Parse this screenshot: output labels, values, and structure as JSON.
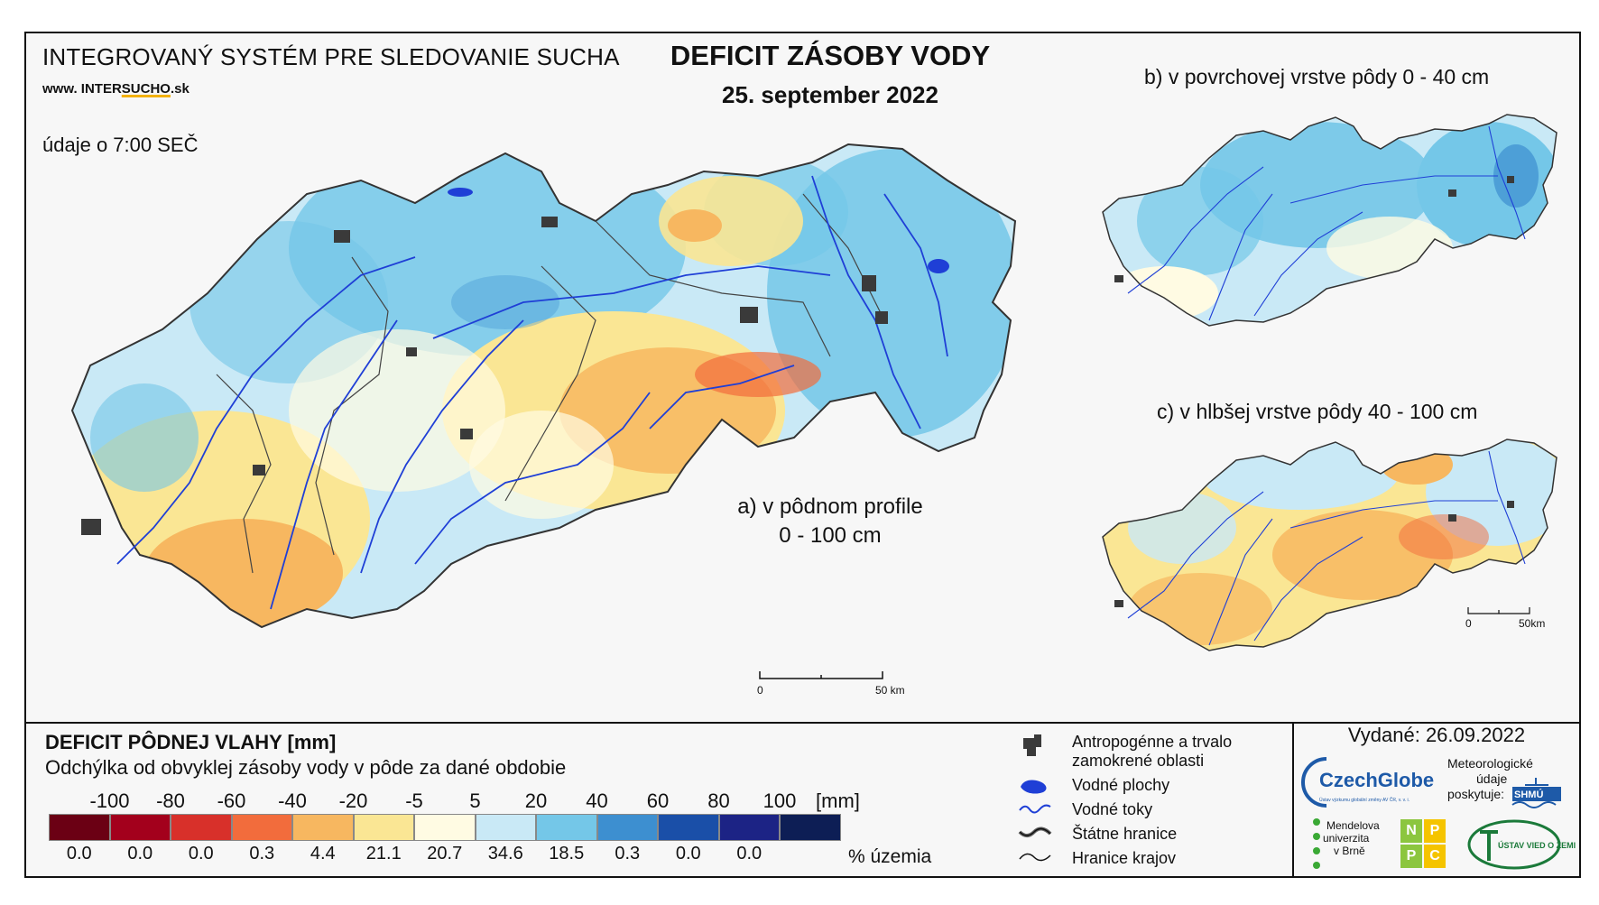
{
  "header": {
    "system_title": "INTEGROVANÝ SYSTÉM PRE SLEDOVANIE SUCHA",
    "website_prefix": "www. INTER",
    "website_highlight": "SUCHO",
    "website_suffix": ".sk",
    "data_time": "údaje o 7:00 SEČ",
    "title": "DEFICIT ZÁSOBY VODY",
    "date": "25. september 2022"
  },
  "maps": {
    "a_line1": "a) v pôdnom profile",
    "a_line2": "0 - 100 cm",
    "b_label": "b) v povrchovej vrstve pôdy 0 - 40 cm",
    "c_label": "c) v hlbšej vrstve pôdy 40 - 100 cm",
    "scale_main_zero": "0",
    "scale_main_end": "50 km",
    "scale_small_zero": "0",
    "scale_small_end": "50km"
  },
  "legend": {
    "title": "DEFICIT PÔDNEJ VLAHY [mm]",
    "subtitle": "Odchýlka od obvyklej zásoby vody v pôde za dané obdobie",
    "ticks": [
      "-100",
      "-80",
      "-60",
      "-40",
      "-20",
      "-5",
      "5",
      "20",
      "40",
      "60",
      "80",
      "100"
    ],
    "unit": "[mm]",
    "colors": [
      "#6b0014",
      "#a3001c",
      "#d8302a",
      "#f26c3c",
      "#f7b760",
      "#fae694",
      "#fffbe3",
      "#c9e9f6",
      "#74c7e8",
      "#3d8fd0",
      "#1a4fa8",
      "#1c2385",
      "#0d1e55"
    ],
    "percent": [
      "0.0",
      "0.0",
      "0.0",
      "0.3",
      "4.4",
      "21.1",
      "20.7",
      "34.6",
      "18.5",
      "0.3",
      "0.0",
      "0.0"
    ],
    "percent_label": "% územia"
  },
  "symbols": {
    "urban_1": "Antropogénne a trvalo",
    "urban_2": "zamokrené oblasti",
    "water_bodies": "Vodné plochy",
    "rivers": "Vodné toky",
    "state_border": "Štátne hranice",
    "region_border": "Hranice krajov"
  },
  "footer": {
    "issued": "Vydané: 26.09.2022",
    "czechglobe": "CzechGlobe",
    "czechglobe_sub": "Ústav výzkumu globální změny AV ČR, v. v. i.",
    "met_1": "Meteorologické",
    "met_2": "údaje",
    "met_3": "poskytuje:",
    "shmu": "SHMÚ",
    "mendel_1": "Mendelova",
    "mendel_2": "univerzita",
    "mendel_3": "v Brně",
    "nppc": [
      "N",
      "P",
      "P",
      "C"
    ],
    "uvz": "ÚSTAV VIED O ZEMI"
  }
}
